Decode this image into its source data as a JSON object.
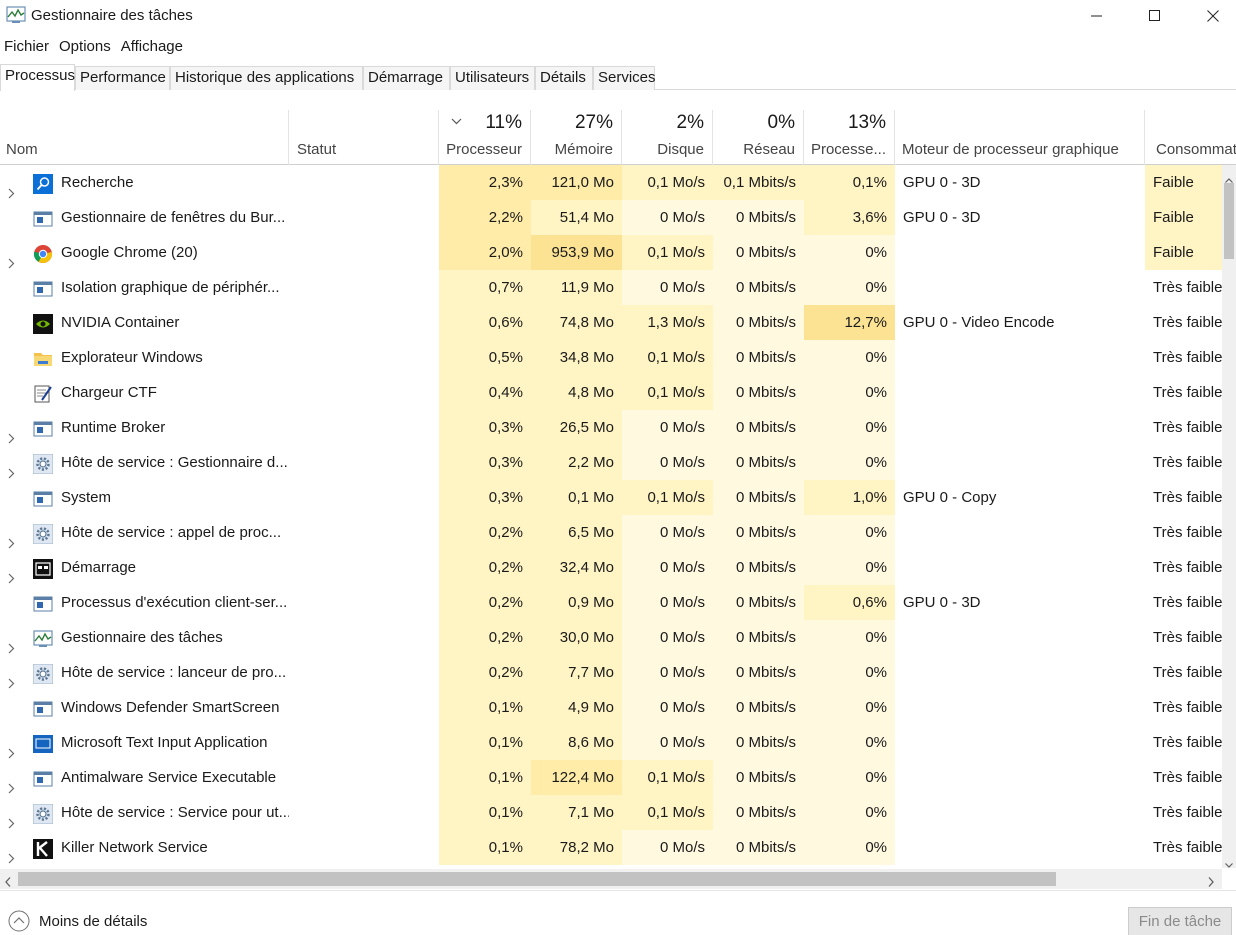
{
  "window": {
    "title": "Gestionnaire des tâches",
    "icon": "task-manager-icon"
  },
  "menu": [
    "Fichier",
    "Options",
    "Affichage"
  ],
  "tabs": [
    {
      "label": "Processus",
      "active": true
    },
    {
      "label": "Performance"
    },
    {
      "label": "Historique des applications"
    },
    {
      "label": "Démarrage"
    },
    {
      "label": "Utilisateurs"
    },
    {
      "label": "Détails"
    },
    {
      "label": "Services"
    }
  ],
  "columns": {
    "name": {
      "label": "Nom"
    },
    "status": {
      "label": "Statut"
    },
    "cpu": {
      "label": "Processeur",
      "pct": "11%"
    },
    "memory": {
      "label": "Mémoire",
      "pct": "27%"
    },
    "disk": {
      "label": "Disque",
      "pct": "2%"
    },
    "network": {
      "label": "Réseau",
      "pct": "0%"
    },
    "gpu": {
      "label": "Processe...",
      "pct": "13%"
    },
    "gpu_engine": {
      "label": "Moteur de processeur graphique"
    },
    "power": {
      "label": "Consommat"
    }
  },
  "colors": {
    "heat_light": "#fff4c4",
    "heat_medium": "#ffeca8",
    "heat_strong": "#fce293",
    "heat_pale": "#fff9e0"
  },
  "processes": [
    {
      "name": "Recherche",
      "icon": "search-app-icon",
      "expandable": true,
      "cpu": "2,3%",
      "memory": "121,0 Mo",
      "disk": "0,1 Mo/s",
      "network": "0,1 Mbits/s",
      "gpu": "0,1%",
      "gpu_engine": "GPU 0 - 3D",
      "power": "Faible"
    },
    {
      "name": "Gestionnaire de fenêtres du Bur...",
      "icon": "window-app-icon",
      "expandable": false,
      "cpu": "2,2%",
      "memory": "51,4 Mo",
      "disk": "0 Mo/s",
      "network": "0 Mbits/s",
      "gpu": "3,6%",
      "gpu_engine": "GPU 0 - 3D",
      "power": "Faible"
    },
    {
      "name": "Google Chrome (20)",
      "icon": "chrome-icon",
      "expandable": true,
      "cpu": "2,0%",
      "memory": "953,9 Mo",
      "disk": "0,1 Mo/s",
      "network": "0 Mbits/s",
      "gpu": "0%",
      "gpu_engine": "",
      "power": "Faible"
    },
    {
      "name": "Isolation graphique de périphér...",
      "icon": "window-app-icon",
      "expandable": false,
      "cpu": "0,7%",
      "memory": "11,9 Mo",
      "disk": "0 Mo/s",
      "network": "0 Mbits/s",
      "gpu": "0%",
      "gpu_engine": "",
      "power": "Très faible"
    },
    {
      "name": "NVIDIA Container",
      "icon": "nvidia-icon",
      "expandable": false,
      "cpu": "0,6%",
      "memory": "74,8 Mo",
      "disk": "1,3 Mo/s",
      "network": "0 Mbits/s",
      "gpu": "12,7%",
      "gpu_engine": "GPU 0 - Video Encode",
      "power": "Très faible"
    },
    {
      "name": "Explorateur Windows",
      "icon": "folder-icon",
      "expandable": false,
      "cpu": "0,5%",
      "memory": "34,8 Mo",
      "disk": "0,1 Mo/s",
      "network": "0 Mbits/s",
      "gpu": "0%",
      "gpu_engine": "",
      "power": "Très faible"
    },
    {
      "name": "Chargeur CTF",
      "icon": "ctf-loader-icon",
      "expandable": false,
      "cpu": "0,4%",
      "memory": "4,8 Mo",
      "disk": "0,1 Mo/s",
      "network": "0 Mbits/s",
      "gpu": "0%",
      "gpu_engine": "",
      "power": "Très faible"
    },
    {
      "name": "Runtime Broker",
      "icon": "window-app-icon",
      "expandable": true,
      "cpu": "0,3%",
      "memory": "26,5 Mo",
      "disk": "0 Mo/s",
      "network": "0 Mbits/s",
      "gpu": "0%",
      "gpu_engine": "",
      "power": "Très faible"
    },
    {
      "name": "Hôte de service : Gestionnaire d...",
      "icon": "gear-icon",
      "expandable": true,
      "cpu": "0,3%",
      "memory": "2,2 Mo",
      "disk": "0 Mo/s",
      "network": "0 Mbits/s",
      "gpu": "0%",
      "gpu_engine": "",
      "power": "Très faible"
    },
    {
      "name": "System",
      "icon": "window-app-icon",
      "expandable": false,
      "cpu": "0,3%",
      "memory": "0,1 Mo",
      "disk": "0,1 Mo/s",
      "network": "0 Mbits/s",
      "gpu": "1,0%",
      "gpu_engine": "GPU 0 - Copy",
      "power": "Très faible"
    },
    {
      "name": "Hôte de service : appel de proc...",
      "icon": "gear-icon",
      "expandable": true,
      "cpu": "0,2%",
      "memory": "6,5 Mo",
      "disk": "0 Mo/s",
      "network": "0 Mbits/s",
      "gpu": "0%",
      "gpu_engine": "",
      "power": "Très faible"
    },
    {
      "name": "Démarrage",
      "icon": "start-icon",
      "expandable": true,
      "cpu": "0,2%",
      "memory": "32,4 Mo",
      "disk": "0 Mo/s",
      "network": "0 Mbits/s",
      "gpu": "0%",
      "gpu_engine": "",
      "power": "Très faible"
    },
    {
      "name": "Processus d'exécution client-ser...",
      "icon": "window-app-icon",
      "expandable": false,
      "cpu": "0,2%",
      "memory": "0,9 Mo",
      "disk": "0 Mo/s",
      "network": "0 Mbits/s",
      "gpu": "0,6%",
      "gpu_engine": "GPU 0 - 3D",
      "power": "Très faible"
    },
    {
      "name": "Gestionnaire des tâches",
      "icon": "task-manager-icon",
      "expandable": true,
      "cpu": "0,2%",
      "memory": "30,0 Mo",
      "disk": "0 Mo/s",
      "network": "0 Mbits/s",
      "gpu": "0%",
      "gpu_engine": "",
      "power": "Très faible"
    },
    {
      "name": "Hôte de service : lanceur de pro...",
      "icon": "gear-icon",
      "expandable": true,
      "cpu": "0,2%",
      "memory": "7,7 Mo",
      "disk": "0 Mo/s",
      "network": "0 Mbits/s",
      "gpu": "0%",
      "gpu_engine": "",
      "power": "Très faible"
    },
    {
      "name": "Windows Defender SmartScreen",
      "icon": "window-app-icon",
      "expandable": false,
      "cpu": "0,1%",
      "memory": "4,9 Mo",
      "disk": "0 Mo/s",
      "network": "0 Mbits/s",
      "gpu": "0%",
      "gpu_engine": "",
      "power": "Très faible"
    },
    {
      "name": "Microsoft Text Input Application",
      "icon": "blue-app-icon",
      "expandable": true,
      "cpu": "0,1%",
      "memory": "8,6 Mo",
      "disk": "0 Mo/s",
      "network": "0 Mbits/s",
      "gpu": "0%",
      "gpu_engine": "",
      "power": "Très faible"
    },
    {
      "name": "Antimalware Service Executable",
      "icon": "window-app-icon",
      "expandable": true,
      "cpu": "0,1%",
      "memory": "122,4 Mo",
      "disk": "0,1 Mo/s",
      "network": "0 Mbits/s",
      "gpu": "0%",
      "gpu_engine": "",
      "power": "Très faible"
    },
    {
      "name": "Hôte de service : Service pour ut...",
      "icon": "gear-icon",
      "expandable": true,
      "cpu": "0,1%",
      "memory": "7,1 Mo",
      "disk": "0,1 Mo/s",
      "network": "0 Mbits/s",
      "gpu": "0%",
      "gpu_engine": "",
      "power": "Très faible"
    },
    {
      "name": "Killer Network Service",
      "icon": "killer-icon",
      "expandable": true,
      "cpu": "0,1%",
      "memory": "78,2 Mo",
      "disk": "0 Mo/s",
      "network": "0 Mbits/s",
      "gpu": "0%",
      "gpu_engine": "",
      "power": "Très faible"
    }
  ],
  "footer": {
    "less_details": "Moins de détails",
    "end_task": "Fin de tâche"
  }
}
